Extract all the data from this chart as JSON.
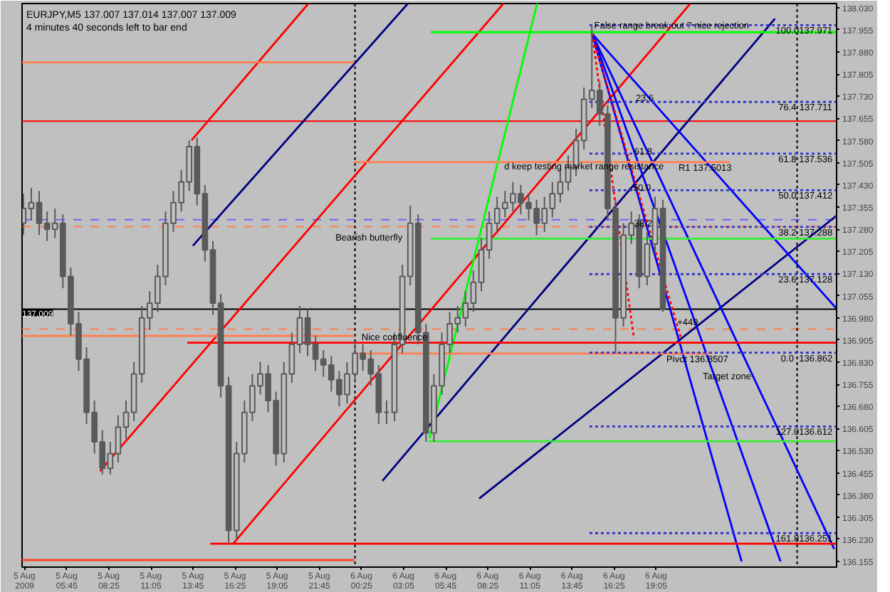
{
  "chart_data": {
    "type": "candlestick",
    "title": "EURJPY,M5  137.007 137.014 137.007 137.009",
    "subtitle": "4 minutes 40 seconds left to bar end",
    "xlim": [
      "2009-08-05T02:55",
      "2009-08-07T06:30"
    ],
    "ylim": [
      136.136,
      138.044
    ],
    "xticks": [
      {
        "value": "2009-08-05T03:05",
        "label": "5 Aug 2009"
      },
      {
        "value": "2009-08-05T05:45",
        "label": "5 Aug 05:45"
      },
      {
        "value": "2009-08-05T08:25",
        "label": "5 Aug 08:25"
      },
      {
        "value": "2009-08-05T11:05",
        "label": "5 Aug 11:05"
      },
      {
        "value": "2009-08-05T13:45",
        "label": "5 Aug 13:45"
      },
      {
        "value": "2009-08-05T16:25",
        "label": "5 Aug 16:25"
      },
      {
        "value": "2009-08-05T19:05",
        "label": "5 Aug 19:05"
      },
      {
        "value": "2009-08-05T21:45",
        "label": "5 Aug 21:45"
      },
      {
        "value": "2009-08-06T00:25",
        "label": "6 Aug 00:25"
      },
      {
        "value": "2009-08-06T03:05",
        "label": "6 Aug 03:05"
      },
      {
        "value": "2009-08-06T05:45",
        "label": "6 Aug 05:45"
      },
      {
        "value": "2009-08-06T08:25",
        "label": "6 Aug 08:25"
      },
      {
        "value": "2009-08-06T11:05",
        "label": "6 Aug 11:05"
      },
      {
        "value": "2009-08-06T13:45",
        "label": "6 Aug 13:45"
      },
      {
        "value": "2009-08-06T16:25",
        "label": "6 Aug 16:25"
      },
      {
        "value": "2009-08-06T19:05",
        "label": "6 Aug 19:05"
      }
    ],
    "yticks": [
      {
        "value": 136.155,
        "label": "136.155"
      },
      {
        "value": 136.23,
        "label": "136.230"
      },
      {
        "value": 136.305,
        "label": "136.305"
      },
      {
        "value": 136.38,
        "label": "136.380"
      },
      {
        "value": 136.455,
        "label": "136.455"
      },
      {
        "value": 136.53,
        "label": "136.530"
      },
      {
        "value": 136.605,
        "label": "136.605"
      },
      {
        "value": 136.68,
        "label": "136.680"
      },
      {
        "value": 136.755,
        "label": "136.755"
      },
      {
        "value": 136.83,
        "label": "136.830"
      },
      {
        "value": 136.905,
        "label": "136.905"
      },
      {
        "value": 136.98,
        "label": "136.980"
      },
      {
        "value": 137.055,
        "label": "137.055"
      },
      {
        "value": 137.13,
        "label": "137.130"
      },
      {
        "value": 137.205,
        "label": "137.205"
      },
      {
        "value": 137.28,
        "label": "137.280"
      },
      {
        "value": 137.355,
        "label": "137.355"
      },
      {
        "value": 137.43,
        "label": "137.430"
      },
      {
        "value": 137.505,
        "label": "137.505"
      },
      {
        "value": 137.58,
        "label": "137.580"
      },
      {
        "value": 137.655,
        "label": "137.655"
      },
      {
        "value": 137.73,
        "label": "137.730"
      },
      {
        "value": 137.805,
        "label": "137.805"
      },
      {
        "value": 137.88,
        "label": "137.880"
      },
      {
        "value": 137.955,
        "label": "137.955"
      },
      {
        "value": 138.03,
        "label": "138.030"
      }
    ],
    "series": [
      {
        "type": "line",
        "color": "#ff0000",
        "x": [
          "2009-08-05T13:39",
          "2009-08-05T21:03"
        ],
        "values": [
          137.581,
          138.044
        ]
      },
      {
        "type": "line",
        "color": "#ff0000",
        "x": [
          "2009-08-05T07:51",
          "2009-08-06T09:24"
        ],
        "values": [
          136.461,
          138.044
        ]
      },
      {
        "type": "line",
        "color": "#ff0000",
        "x": [
          "2009-08-05T16:17",
          "2009-08-06T21:14"
        ],
        "values": [
          136.215,
          138.044
        ]
      },
      {
        "type": "line",
        "color": "#000080",
        "x": [
          "2009-08-05T13:44",
          "2009-08-06T03:21"
        ],
        "values": [
          137.224,
          138.044
        ]
      },
      {
        "type": "line",
        "color": "#000080",
        "x": [
          "2009-08-06T01:44",
          "2009-08-07T02:36"
        ],
        "values": [
          136.428,
          137.993
        ]
      },
      {
        "type": "line",
        "color": "#000080",
        "x": [
          "2009-08-06T07:52",
          "2009-08-07T06:30"
        ],
        "values": [
          136.368,
          137.326
        ]
      },
      {
        "type": "line",
        "color": "#0000ff",
        "x": [
          "2009-08-06T15:01",
          "2009-08-07T06:30"
        ],
        "values": [
          137.942,
          137.011
        ]
      },
      {
        "type": "line",
        "color": "#0000ff",
        "x": [
          "2009-08-06T15:01",
          "2009-08-07T06:21"
        ],
        "values": [
          137.942,
          136.197
        ]
      },
      {
        "type": "line",
        "color": "#0000ff",
        "x": [
          "2009-08-06T15:01",
          "2009-08-07T02:57"
        ],
        "values": [
          137.942,
          136.155
        ]
      },
      {
        "type": "line",
        "color": "#0000ff",
        "x": [
          "2009-08-06T15:01",
          "2009-08-07T00:29"
        ],
        "values": [
          137.942,
          136.155
        ]
      },
      {
        "type": "line",
        "color": "#ff0000",
        "line_style": "dotted",
        "x": [
          "2009-08-06T15:01",
          "2009-08-06T17:40"
        ],
        "values": [
          137.942,
          136.91
        ]
      },
      {
        "type": "line",
        "color": "#ff0000",
        "line_style": "dotted",
        "x": [
          "2009-08-06T15:01",
          "2009-08-06T20:39"
        ],
        "values": [
          137.942,
          136.91
        ]
      },
      {
        "type": "line",
        "color": "#00ff00",
        "x": [
          "2009-08-06T04:43",
          "2009-08-06T11:32"
        ],
        "values": [
          136.572,
          138.044
        ]
      },
      {
        "type": "line",
        "color": "#00ff00",
        "x": [
          "2009-08-06T04:48",
          "2009-08-07T06:30"
        ],
        "values": [
          137.947,
          137.947
        ]
      },
      {
        "type": "line",
        "color": "#33ee33",
        "x": [
          "2009-08-06T04:48",
          "2009-08-07T06:30"
        ],
        "values": [
          137.248,
          137.248
        ]
      },
      {
        "type": "line",
        "color": "#33ee33",
        "x": [
          "2009-08-06T04:38",
          "2009-08-07T06:30"
        ],
        "values": [
          136.562,
          136.562
        ]
      },
      {
        "type": "line",
        "color": "#ff0000",
        "x": [
          "2009-08-05T13:23",
          "2009-08-07T06:30"
        ],
        "values": [
          136.896,
          136.896
        ]
      },
      {
        "type": "line",
        "color": "#ff0000",
        "x": [
          "2009-08-05T14:50",
          "2009-08-07T06:30"
        ],
        "values": [
          136.215,
          136.215
        ]
      },
      {
        "type": "line",
        "color": "#ff4020",
        "x": [
          "2009-08-05T02:55",
          "2009-08-05T23:57"
        ],
        "values": [
          136.16,
          136.16
        ]
      },
      {
        "type": "line",
        "color": "#ff7f50",
        "x": [
          "2009-08-05T02:55",
          "2009-08-05T23:57"
        ],
        "values": [
          137.845,
          137.845
        ]
      },
      {
        "type": "line",
        "color": "#ff7f50",
        "x": [
          "2009-08-05T23:57",
          "2009-08-06T23:45"
        ],
        "values": [
          137.507,
          137.507
        ]
      },
      {
        "type": "line",
        "color": "#ff7f50",
        "x": [
          "2009-08-05T02:55",
          "2009-08-05T23:57"
        ],
        "values": [
          136.919,
          136.919
        ]
      },
      {
        "type": "line",
        "color": "#ff7f50",
        "x": [
          "2009-08-05T23:57",
          "2009-08-06T22:30"
        ],
        "values": [
          136.859,
          136.859
        ]
      },
      {
        "type": "line",
        "color": "#3333cc",
        "line_style": "dotted",
        "x": [
          "2009-08-06T14:51",
          "2009-08-07T06:30"
        ],
        "values": [
          137.971,
          137.971
        ]
      },
      {
        "type": "line",
        "color": "#3333cc",
        "line_style": "dotted",
        "x": [
          "2009-08-06T14:51",
          "2009-08-07T06:30"
        ],
        "values": [
          137.711,
          137.711
        ]
      },
      {
        "type": "line",
        "color": "#3333cc",
        "line_style": "dotted",
        "x": [
          "2009-08-06T14:51",
          "2009-08-07T06:30"
        ],
        "values": [
          137.536,
          137.536
        ]
      },
      {
        "type": "line",
        "color": "#3333cc",
        "line_style": "dotted",
        "x": [
          "2009-08-06T14:51",
          "2009-08-07T06:30"
        ],
        "values": [
          137.412,
          137.412
        ]
      },
      {
        "type": "line",
        "color": "#3333cc",
        "line_style": "dotted",
        "x": [
          "2009-08-06T14:51",
          "2009-08-07T06:30"
        ],
        "values": [
          137.288,
          137.288
        ]
      },
      {
        "type": "line",
        "color": "#3333cc",
        "line_style": "dotted",
        "x": [
          "2009-08-06T14:51",
          "2009-08-07T06:30"
        ],
        "values": [
          137.128,
          137.128
        ]
      },
      {
        "type": "line",
        "color": "#3333cc",
        "line_style": "dotted",
        "x": [
          "2009-08-06T14:51",
          "2009-08-07T06:30"
        ],
        "values": [
          136.862,
          136.862
        ]
      },
      {
        "type": "line",
        "color": "#3333cc",
        "line_style": "dotted",
        "x": [
          "2009-08-06T14:51",
          "2009-08-07T06:30"
        ],
        "values": [
          136.612,
          136.612
        ]
      },
      {
        "type": "line",
        "color": "#3333cc",
        "line_style": "dotted",
        "x": [
          "2009-08-06T14:51",
          "2009-08-07T06:30"
        ],
        "values": [
          136.251,
          136.251
        ]
      },
      {
        "color": "#5a5a5a",
        "x": [
          "2009-08-05T03:00",
          "2009-08-05T03:30",
          "2009-08-05T04:00",
          "2009-08-05T04:30",
          "2009-08-05T05:00",
          "2009-08-05T05:30",
          "2009-08-05T06:00",
          "2009-08-05T06:30",
          "2009-08-05T07:00",
          "2009-08-05T07:30",
          "2009-08-05T08:00",
          "2009-08-05T08:30",
          "2009-08-05T09:00",
          "2009-08-05T09:30",
          "2009-08-05T10:00",
          "2009-08-05T10:30",
          "2009-08-05T11:00",
          "2009-08-05T11:30",
          "2009-08-05T12:00",
          "2009-08-05T12:30",
          "2009-08-05T13:00",
          "2009-08-05T13:30",
          "2009-08-05T14:00",
          "2009-08-05T14:30",
          "2009-08-05T15:00",
          "2009-08-05T15:30",
          "2009-08-05T16:00",
          "2009-08-05T16:30",
          "2009-08-05T17:00",
          "2009-08-05T17:30",
          "2009-08-05T18:00",
          "2009-08-05T18:30",
          "2009-08-05T19:00",
          "2009-08-05T19:30",
          "2009-08-05T20:00",
          "2009-08-05T20:30",
          "2009-08-05T21:00",
          "2009-08-05T21:30",
          "2009-08-05T22:00",
          "2009-08-05T22:30",
          "2009-08-05T23:00",
          "2009-08-05T23:30",
          "2009-08-06T00:00",
          "2009-08-06T00:30",
          "2009-08-06T01:00",
          "2009-08-06T01:30",
          "2009-08-06T02:00",
          "2009-08-06T02:30",
          "2009-08-06T03:00",
          "2009-08-06T03:30",
          "2009-08-06T04:00",
          "2009-08-06T04:30",
          "2009-08-06T05:00",
          "2009-08-06T05:30",
          "2009-08-06T06:00",
          "2009-08-06T06:30",
          "2009-08-06T07:00",
          "2009-08-06T07:30",
          "2009-08-06T08:00",
          "2009-08-06T08:30",
          "2009-08-06T09:00",
          "2009-08-06T09:30",
          "2009-08-06T10:00",
          "2009-08-06T10:30",
          "2009-08-06T11:00",
          "2009-08-06T11:30",
          "2009-08-06T12:00",
          "2009-08-06T12:30",
          "2009-08-06T13:00",
          "2009-08-06T13:30",
          "2009-08-06T14:00",
          "2009-08-06T14:30",
          "2009-08-06T15:00",
          "2009-08-06T15:30",
          "2009-08-06T16:00",
          "2009-08-06T16:30",
          "2009-08-06T17:00",
          "2009-08-06T17:30",
          "2009-08-06T18:00",
          "2009-08-06T18:30",
          "2009-08-06T19:00",
          "2009-08-06T19:30"
        ],
        "ohlc": [
          [
            137.3,
            137.4,
            137.26,
            137.35
          ],
          [
            137.35,
            137.42,
            137.31,
            137.37
          ],
          [
            137.37,
            137.41,
            137.26,
            137.3
          ],
          [
            137.3,
            137.34,
            137.24,
            137.28
          ],
          [
            137.28,
            137.35,
            137.25,
            137.3
          ],
          [
            137.3,
            137.33,
            137.08,
            137.12
          ],
          [
            137.12,
            137.15,
            136.92,
            136.96
          ],
          [
            136.96,
            137.0,
            136.8,
            136.84
          ],
          [
            136.84,
            136.88,
            136.62,
            136.66
          ],
          [
            136.66,
            136.7,
            136.52,
            136.56
          ],
          [
            136.56,
            136.6,
            136.45,
            136.47
          ],
          [
            136.47,
            136.56,
            136.45,
            136.52
          ],
          [
            136.52,
            136.65,
            136.49,
            136.61
          ],
          [
            136.61,
            136.7,
            136.57,
            136.66
          ],
          [
            136.66,
            136.83,
            136.63,
            136.79
          ],
          [
            136.79,
            137.02,
            136.76,
            136.98
          ],
          [
            136.98,
            137.07,
            136.94,
            137.03
          ],
          [
            137.03,
            137.16,
            137.0,
            137.12
          ],
          [
            137.12,
            137.34,
            137.09,
            137.3
          ],
          [
            137.3,
            137.41,
            137.27,
            137.37
          ],
          [
            137.37,
            137.48,
            137.34,
            137.44
          ],
          [
            137.44,
            137.58,
            137.41,
            137.56
          ],
          [
            137.56,
            137.59,
            137.36,
            137.4
          ],
          [
            137.4,
            137.43,
            137.17,
            137.21
          ],
          [
            137.21,
            137.24,
            136.99,
            137.03
          ],
          [
            137.03,
            137.06,
            136.71,
            136.75
          ],
          [
            136.75,
            136.78,
            136.22,
            136.26
          ],
          [
            136.26,
            136.56,
            136.23,
            136.52
          ],
          [
            136.52,
            136.7,
            136.49,
            136.66
          ],
          [
            136.66,
            136.79,
            136.63,
            136.75
          ],
          [
            136.75,
            136.83,
            136.72,
            136.79
          ],
          [
            136.79,
            136.82,
            136.66,
            136.7
          ],
          [
            136.7,
            136.73,
            136.48,
            136.52
          ],
          [
            136.52,
            136.83,
            136.49,
            136.79
          ],
          [
            136.79,
            136.93,
            136.76,
            136.89
          ],
          [
            136.89,
            137.02,
            136.86,
            136.98
          ],
          [
            136.98,
            137.01,
            136.85,
            136.89
          ],
          [
            136.89,
            136.92,
            136.8,
            136.84
          ],
          [
            136.84,
            136.87,
            136.78,
            136.82
          ],
          [
            136.82,
            136.85,
            136.73,
            136.77
          ],
          [
            136.77,
            136.8,
            136.68,
            136.72
          ],
          [
            136.72,
            136.83,
            136.69,
            136.79
          ],
          [
            136.79,
            136.9,
            136.76,
            136.86
          ],
          [
            136.86,
            136.89,
            136.8,
            136.84
          ],
          [
            136.84,
            136.87,
            136.75,
            136.79
          ],
          [
            136.79,
            136.82,
            136.62,
            136.66
          ],
          [
            136.66,
            136.7,
            136.62,
            136.66
          ],
          [
            136.66,
            136.93,
            136.63,
            136.89
          ],
          [
            136.89,
            137.16,
            136.86,
            137.12
          ],
          [
            137.12,
            137.36,
            137.09,
            137.3
          ],
          [
            137.3,
            137.33,
            136.89,
            136.93
          ],
          [
            136.93,
            136.96,
            136.56,
            136.59
          ],
          [
            136.59,
            136.79,
            136.56,
            136.75
          ],
          [
            136.75,
            136.93,
            136.72,
            136.89
          ],
          [
            136.89,
            137.0,
            136.86,
            136.96
          ],
          [
            136.96,
            137.02,
            136.93,
            136.98
          ],
          [
            136.98,
            137.07,
            136.95,
            137.03
          ],
          [
            137.03,
            137.14,
            137.0,
            137.1
          ],
          [
            137.1,
            137.25,
            137.07,
            137.21
          ],
          [
            137.21,
            137.34,
            137.18,
            137.3
          ],
          [
            137.3,
            137.39,
            137.27,
            137.35
          ],
          [
            137.35,
            137.41,
            137.32,
            137.37
          ],
          [
            137.37,
            137.44,
            137.34,
            137.4
          ],
          [
            137.4,
            137.43,
            137.33,
            137.37
          ],
          [
            137.37,
            137.4,
            137.31,
            137.35
          ],
          [
            137.35,
            137.38,
            137.26,
            137.3
          ],
          [
            137.3,
            137.39,
            137.27,
            137.35
          ],
          [
            137.35,
            137.44,
            137.32,
            137.4
          ],
          [
            137.4,
            137.48,
            137.37,
            137.44
          ],
          [
            137.44,
            137.53,
            137.41,
            137.49
          ],
          [
            137.49,
            137.62,
            137.46,
            137.58
          ],
          [
            137.58,
            137.76,
            137.55,
            137.72
          ],
          [
            137.72,
            137.97,
            137.69,
            137.75
          ],
          [
            137.75,
            137.78,
            137.63,
            137.67
          ],
          [
            137.67,
            137.7,
            137.31,
            137.35
          ],
          [
            137.35,
            137.38,
            136.86,
            136.98
          ],
          [
            136.98,
            137.3,
            136.95,
            137.26
          ],
          [
            137.26,
            137.34,
            137.23,
            137.3
          ],
          [
            137.3,
            137.33,
            137.08,
            137.12
          ],
          [
            137.12,
            137.27,
            137.09,
            137.23
          ],
          [
            137.23,
            137.39,
            137.2,
            137.35
          ],
          [
            137.35,
            137.38,
            137.0,
            137.01
          ]
        ]
      }
    ],
    "ref_lines": [
      {
        "axis": "y",
        "value": 137.646,
        "color": "#ff0000"
      },
      {
        "axis": "y",
        "value": 137.312,
        "color": "#6666ff",
        "line_style": "dashed"
      },
      {
        "axis": "y",
        "value": 137.289,
        "color": "#ff7f50",
        "line_style": "dashed"
      },
      {
        "axis": "y",
        "value": 136.942,
        "color": "#ff7f50",
        "line_style": "dashed"
      },
      {
        "axis": "y",
        "value": 137.009,
        "color": "#000000",
        "label": "137.009"
      },
      {
        "axis": "x",
        "value": "2009-08-06T00:00",
        "color": "#000000",
        "line_style": "dotted"
      },
      {
        "axis": "x",
        "value": "2009-08-07T04:00",
        "color": "#000000",
        "line_style": "dotted"
      }
    ],
    "annotations": [
      {
        "text": "False range break out ? nice rejection",
        "x": "2009-08-06T20:03",
        "y": 137.988
      },
      {
        "text": "Bearish butterfly",
        "x": "2009-08-06T00:53",
        "y": 137.271
      },
      {
        "text": "Nice confluence",
        "x": "2009-08-06T02:30",
        "y": 136.933
      },
      {
        "text": "d keep testing market range resistance",
        "x": "2009-08-06T14:30",
        "y": 137.511
      },
      {
        "text": "R1 137.5013",
        "x": "2009-08-06T22:10",
        "y": 137.507
      },
      {
        "text": "Pivot 136.8507",
        "x": "2009-08-06T21:41",
        "y": 136.859
      },
      "Target zone",
      {
        "text": "+449",
        "x": "2009-08-06T21:04",
        "y": 136.985
      },
      {
        "text": "23.6",
        "x": "2009-08-06T18:21",
        "y": 137.743
      },
      {
        "text": "61.8",
        "x": "2009-08-06T18:15",
        "y": 137.562
      },
      {
        "text": "50.0",
        "x": "2009-08-06T18:10",
        "y": 137.44
      },
      {
        "text": "38.2",
        "x": "2009-08-06T18:15",
        "y": 137.32
      },
      {
        "text": "100.0",
        "x": "2009-08-07T03:23",
        "y": 137.971
      },
      {
        "text": "137.971",
        "x": "2009-08-07T05:11",
        "y": 137.971
      },
      {
        "text": "76.4",
        "x": "2009-08-07T03:23",
        "y": 137.711
      },
      {
        "text": "137.711",
        "x": "2009-08-07T05:11",
        "y": 137.711
      },
      {
        "text": "61.8",
        "x": "2009-08-07T03:23",
        "y": 137.536
      },
      {
        "text": "137.536",
        "x": "2009-08-07T05:11",
        "y": 137.536
      },
      {
        "text": "50.0",
        "x": "2009-08-07T03:23",
        "y": 137.412
      },
      {
        "text": "137.412",
        "x": "2009-08-07T05:11",
        "y": 137.412
      },
      {
        "text": "38.2",
        "x": "2009-08-07T03:23",
        "y": 137.288
      },
      {
        "text": "137.288",
        "x": "2009-08-07T05:11",
        "y": 137.288
      },
      {
        "text": "23.6",
        "x": "2009-08-07T03:23",
        "y": 137.128
      },
      {
        "text": "137.128",
        "x": "2009-08-07T05:11",
        "y": 137.128
      },
      {
        "text": "0.0",
        "x": "2009-08-07T03:23",
        "y": 136.862
      },
      {
        "text": "136.862",
        "x": "2009-08-07T05:11",
        "y": 136.862
      },
      {
        "text": "127.0",
        "x": "2009-08-07T03:23",
        "y": 136.612
      },
      {
        "text": "136.612",
        "x": "2009-08-07T05:11",
        "y": 136.612
      },
      {
        "text": "161.8",
        "x": "2009-08-07T03:23",
        "y": 136.251
      },
      {
        "text": "136.251",
        "x": "2009-08-07T05:11",
        "y": 136.251
      }
    ]
  }
}
